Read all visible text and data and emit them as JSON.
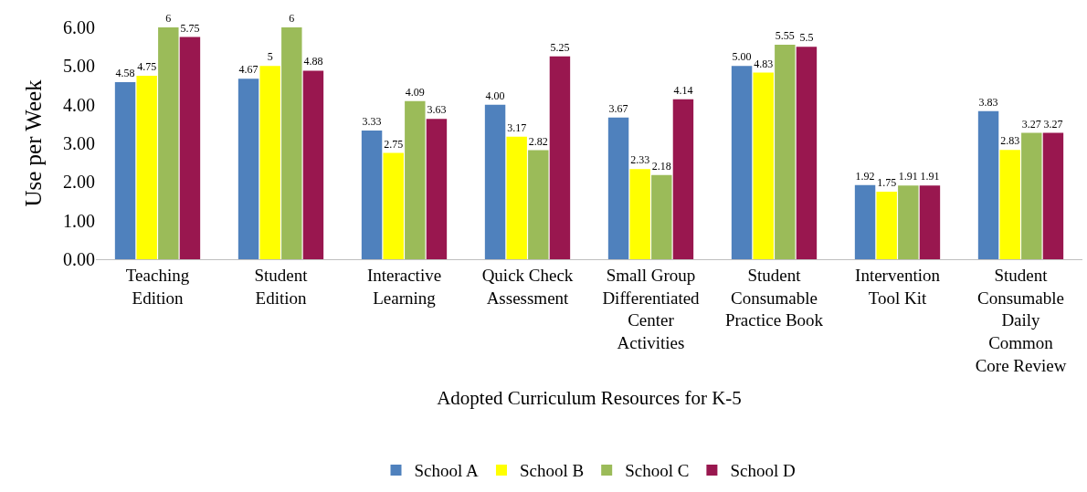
{
  "chart_data": {
    "type": "bar",
    "xlabel": "Adopted Curriculum Resources for K-5",
    "ylabel": "Use per Week",
    "categories": [
      "Teaching\nEdition",
      "Student\nEdition",
      "Interactive\nLearning",
      "Quick Check\nAssessment",
      "Small Group\nDifferentiated\nCenter\nActivities",
      "Student\nConsumable\nPractice Book",
      "Intervention\nTool Kit",
      "Student\nConsumable\nDaily\nCommon\nCore Review"
    ],
    "series": [
      {
        "name": "School A",
        "color": "#4f81bd",
        "values": [
          4.58,
          4.67,
          3.33,
          4.0,
          3.67,
          5.0,
          1.92,
          3.83
        ],
        "value_labels": [
          "4.58",
          "4.67",
          "3.33",
          "4.00",
          "3.67",
          "5.00",
          "1.92",
          "3.83"
        ]
      },
      {
        "name": "School B",
        "color": "#ffff00",
        "values": [
          4.75,
          5,
          2.75,
          3.17,
          2.33,
          4.83,
          1.75,
          2.83
        ],
        "value_labels": [
          "4.75",
          "5",
          "2.75",
          "3.17",
          "2.33",
          "4.83",
          "1.75",
          "2.83"
        ]
      },
      {
        "name": "School C",
        "color": "#9bbb59",
        "values": [
          6,
          6,
          4.09,
          2.82,
          2.18,
          5.55,
          1.91,
          3.27
        ],
        "value_labels": [
          "6",
          "6",
          "4.09",
          "2.82",
          "2.18",
          "5.55",
          "1.91",
          "3.27"
        ]
      },
      {
        "name": "School D",
        "color": "#99174f",
        "values": [
          5.75,
          4.88,
          3.63,
          5.25,
          4.14,
          5.5,
          1.91,
          3.27
        ],
        "value_labels": [
          "5.75",
          "4.88",
          "3.63",
          "5.25",
          "4.14",
          "5.5",
          "1.91",
          "3.27"
        ]
      }
    ],
    "ylim": [
      0,
      6
    ],
    "yticks": [
      {
        "value": 0,
        "label": "0.00"
      },
      {
        "value": 1,
        "label": "1.00"
      },
      {
        "value": 2,
        "label": "2.00"
      },
      {
        "value": 3,
        "label": "3.00"
      },
      {
        "value": 4,
        "label": "4.00"
      },
      {
        "value": 5,
        "label": "5.00"
      },
      {
        "value": 6,
        "label": "6.00"
      }
    ],
    "grid": false,
    "legend": "bottom"
  }
}
